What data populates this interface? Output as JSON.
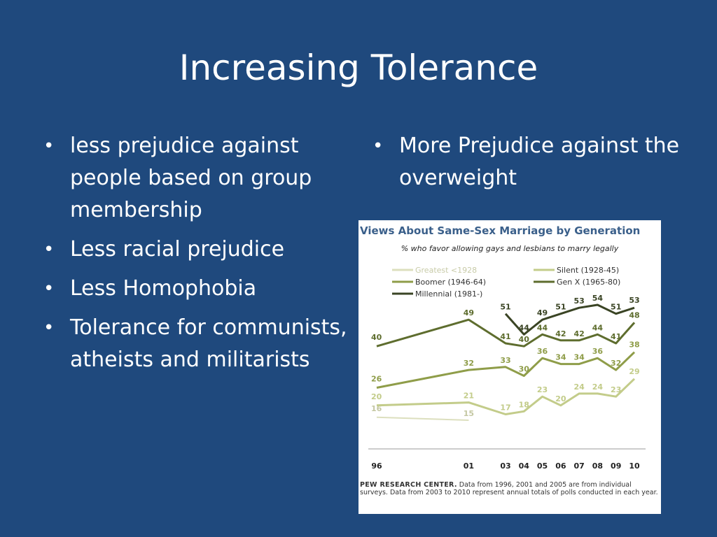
{
  "slide": {
    "title": "Increasing Tolerance",
    "left_bullets": [
      "less prejudice against people based on group membership",
      "Less racial prejudice",
      "Less Homophobia",
      "Tolerance for communists, atheists and militarists"
    ],
    "right_bullets": [
      "More Prejudice against the overweight"
    ]
  },
  "colors": {
    "background": "#1f497d",
    "text": "#ffffff"
  },
  "chart_data": {
    "type": "line",
    "title": "Views About Same-Sex Marriage by Generation",
    "subtitle": "% who favor allowing gays and lesbians to marry legally",
    "x_tick_labels": [
      "96",
      "01",
      "03",
      "04",
      "05",
      "06",
      "07",
      "08",
      "09",
      "10"
    ],
    "x": [
      1996,
      2001,
      2003,
      2004,
      2005,
      2006,
      2007,
      2008,
      2009,
      2010
    ],
    "ylim": [
      0,
      60
    ],
    "grid": false,
    "legend_position": "top",
    "series": [
      {
        "name": "Greatest <1928",
        "color": "#dcdfbe",
        "values": [
          16,
          15,
          null,
          null,
          null,
          null,
          null,
          null,
          null,
          null
        ]
      },
      {
        "name": "Silent (1928-45)",
        "color": "#c3cc8a",
        "values": [
          20,
          21,
          17,
          18,
          23,
          20,
          24,
          24,
          23,
          29
        ]
      },
      {
        "name": "Boomer (1946-64)",
        "color": "#8f9d49",
        "values": [
          26,
          32,
          33,
          30,
          36,
          34,
          34,
          36,
          32,
          38
        ]
      },
      {
        "name": "Gen X (1965-80)",
        "color": "#5e6d2e",
        "values": [
          40,
          49,
          41,
          40,
          44,
          42,
          42,
          44,
          41,
          48
        ]
      },
      {
        "name": "Millennial (1981-)",
        "color": "#3a4424",
        "values": [
          null,
          null,
          51,
          44,
          49,
          51,
          53,
          54,
          51,
          53
        ]
      }
    ],
    "source_org": "PEW RESEARCH CENTER.",
    "source_note": "Data from 1996, 2001 and 2005 are from individual surveys. Data from 2003 to 2010 represent annual totals of polls conducted in each year."
  }
}
